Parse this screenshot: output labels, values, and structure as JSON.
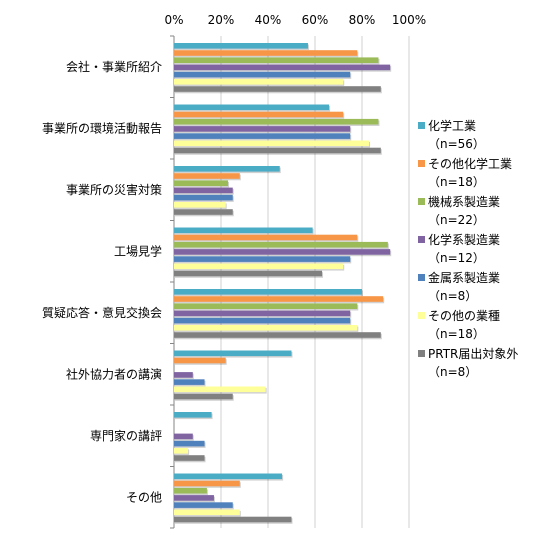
{
  "chart_data": {
    "type": "bar",
    "orientation": "horizontal",
    "categories": [
      "会社・事業所紹介",
      "事業所の環境活動報告",
      "事業所の災害対策",
      "工場見学",
      "質疑応答・意見交換会",
      "社外協力者の講演",
      "専門家の講評",
      "その他"
    ],
    "x_ticks": [
      "0%",
      "20%",
      "40%",
      "60%",
      "80%",
      "100%"
    ],
    "xlim": [
      0,
      100
    ],
    "grid": true,
    "legend_position": "right",
    "series": [
      {
        "name": "化学工業",
        "sub": "（n=56）",
        "color": "#4bacc6",
        "values": [
          57,
          66,
          45,
          59,
          80,
          50,
          16,
          46
        ]
      },
      {
        "name": "その他化学工業",
        "sub": "（n=18）",
        "color": "#f79646",
        "values": [
          78,
          72,
          28,
          78,
          89,
          22,
          0,
          28
        ]
      },
      {
        "name": "機械系製造業",
        "sub": "（n=22）",
        "color": "#9bbb59",
        "values": [
          87,
          87,
          23,
          91,
          78,
          0,
          0,
          14
        ]
      },
      {
        "name": "化学系製造業",
        "sub": "（n=12）",
        "color": "#8064a2",
        "values": [
          92,
          75,
          25,
          92,
          75,
          8,
          8,
          17
        ]
      },
      {
        "name": "金属系製造業",
        "sub": "（n=8）",
        "color": "#4f81bd",
        "values": [
          75,
          75,
          25,
          75,
          75,
          13,
          13,
          25
        ]
      },
      {
        "name": "その他の業種",
        "sub": "（n=18）",
        "color": "#ffff99",
        "values": [
          72,
          83,
          22,
          72,
          78,
          39,
          6,
          28
        ]
      },
      {
        "name": "PRTR届出対象外",
        "sub": "（n=8）",
        "color": "#808080",
        "values": [
          88,
          88,
          25,
          63,
          88,
          25,
          13,
          50
        ]
      }
    ]
  }
}
